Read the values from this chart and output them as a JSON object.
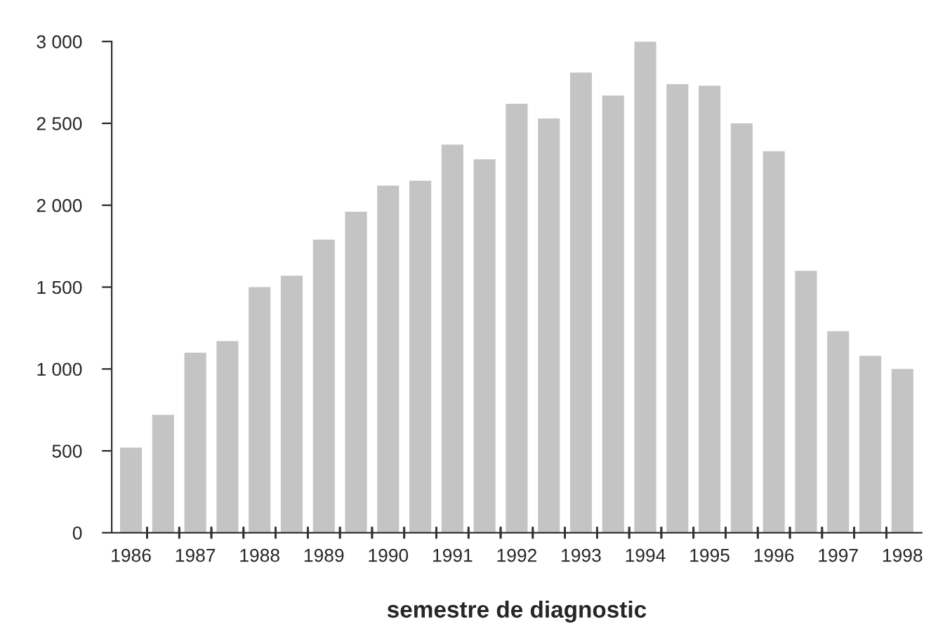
{
  "chart_data": {
    "type": "bar",
    "xlabel": "semestre de diagnostic",
    "categories": [
      "1986",
      null,
      "1987",
      null,
      "1988",
      null,
      "1989",
      null,
      "1990",
      null,
      "1991",
      null,
      "1992",
      null,
      "1993",
      null,
      "1994",
      null,
      "1995",
      null,
      "1996",
      null,
      "1997",
      null,
      "1998"
    ],
    "values": [
      520,
      720,
      1100,
      1170,
      1500,
      1570,
      1790,
      1960,
      2120,
      2150,
      2370,
      2280,
      2620,
      2530,
      2810,
      2670,
      3000,
      2740,
      2730,
      2500,
      2330,
      1600,
      1230,
      1080,
      1000
    ],
    "color": "#c4c4c4",
    "ylim": [
      0,
      3000
    ],
    "yticks": [
      {
        "value": 0,
        "label": "0"
      },
      {
        "value": 500,
        "label": "500"
      },
      {
        "value": 1000,
        "label": "1 000"
      },
      {
        "value": 1500,
        "label": "1 500"
      },
      {
        "value": 2000,
        "label": "2 000"
      },
      {
        "value": 2500,
        "label": "2 500"
      },
      {
        "value": 3000,
        "label": "3 000"
      }
    ],
    "grid": false
  }
}
